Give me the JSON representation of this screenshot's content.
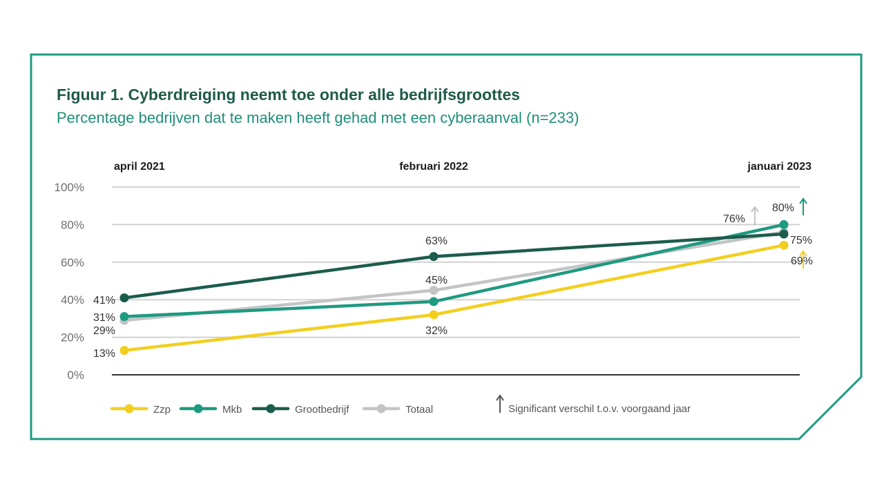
{
  "colors": {
    "frame": "#1e9a80",
    "title": "#1f5a4b",
    "subtitle": "#1e8f78",
    "grid": "#d2d2d2",
    "axis": "#333333"
  },
  "legend": {
    "note": "Significant verschil t.o.v. voorgaand jaar",
    "note_icon": "up-arrow-icon"
  },
  "chart_data": {
    "type": "line",
    "title": "Figuur 1. Cyberdreiging neemt toe onder alle bedrijfsgroottes",
    "subtitle": "Percentage bedrijven dat te maken heeft gehad met een cyberaanval (n=233)",
    "x": [
      "april 2021",
      "februari 2022",
      "januari 2023"
    ],
    "ylim": [
      0,
      100
    ],
    "yticks": [
      0,
      20,
      40,
      60,
      80,
      100
    ],
    "ytick_labels": [
      "0%",
      "20%",
      "40%",
      "60%",
      "80%",
      "100%"
    ],
    "grid": true,
    "legend_position": "bottom",
    "series": [
      {
        "name": "Zzp",
        "color": "#f2cf1e",
        "values": [
          13,
          32,
          69
        ],
        "labels": [
          "13%",
          "32%",
          "69%"
        ],
        "significant": [
          false,
          false,
          true
        ]
      },
      {
        "name": "Totaal",
        "color": "#c2c4c6",
        "values": [
          29,
          45,
          76
        ],
        "labels": [
          "29%",
          "45%",
          "76%"
        ],
        "significant": [
          false,
          false,
          true
        ]
      },
      {
        "name": "Mkb",
        "color": "#1e9a80",
        "values": [
          31,
          39,
          80
        ],
        "labels": [
          "31%",
          "",
          "80%"
        ],
        "significant": [
          false,
          false,
          true
        ]
      },
      {
        "name": "Grootbedrijf",
        "color": "#1c5c4c",
        "values": [
          41,
          63,
          75
        ],
        "labels": [
          "41%",
          "63%",
          "75%"
        ],
        "significant": [
          false,
          false,
          false
        ]
      }
    ]
  }
}
